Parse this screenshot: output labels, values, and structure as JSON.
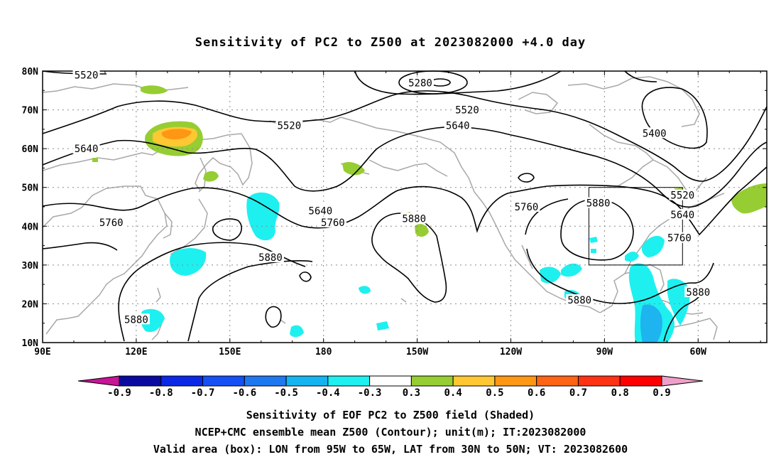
{
  "title": "Sensitivity of PC2 to Z500 at 2023082000 +4.0 day",
  "map": {
    "lat_labels": [
      "80N",
      "70N",
      "60N",
      "50N",
      "40N",
      "30N",
      "20N",
      "10N"
    ],
    "lon_labels": [
      "90E",
      "120E",
      "150E",
      "180",
      "150W",
      "120W",
      "90W",
      "60W"
    ],
    "contour_labels": [
      {
        "text": "5520",
        "lon": 104,
        "lat": 79
      },
      {
        "text": "5280",
        "lon": -149,
        "lat": 77
      },
      {
        "text": "5520",
        "lon": -134,
        "lat": 70
      },
      {
        "text": "5520",
        "lon": 169,
        "lat": 66
      },
      {
        "text": "5640",
        "lon": -137,
        "lat": 66
      },
      {
        "text": "5400",
        "lon": -74,
        "lat": 64
      },
      {
        "text": "5640",
        "lon": 104,
        "lat": 60
      },
      {
        "text": "5520",
        "lon": -65,
        "lat": 48
      },
      {
        "text": "5640",
        "lon": 179,
        "lat": 44
      },
      {
        "text": "5760",
        "lon": -115,
        "lat": 45
      },
      {
        "text": "5880",
        "lon": -92,
        "lat": 46
      },
      {
        "text": "5640",
        "lon": -65,
        "lat": 43
      },
      {
        "text": "5880",
        "lon": -151,
        "lat": 42
      },
      {
        "text": "5760",
        "lon": 112,
        "lat": 41
      },
      {
        "text": "5760",
        "lon": 183,
        "lat": 41
      },
      {
        "text": "5760",
        "lon": -66,
        "lat": 37
      },
      {
        "text": "5880",
        "lon": 163,
        "lat": 32
      },
      {
        "text": "5880",
        "lon": -60,
        "lat": 23
      },
      {
        "text": "5880",
        "lon": -98,
        "lat": 21
      },
      {
        "text": "5880",
        "lon": 120,
        "lat": 16
      }
    ],
    "valid_box": {
      "lon_min": -95,
      "lon_max": -65,
      "lat_min": 30,
      "lat_max": 50
    }
  },
  "colorbar": {
    "levels": [
      "-0.9",
      "-0.8",
      "-0.7",
      "-0.6",
      "-0.5",
      "-0.4",
      "-0.3",
      "0.3",
      "0.4",
      "0.5",
      "0.6",
      "0.7",
      "0.8",
      "0.9"
    ],
    "colors": [
      "#0a0aa0",
      "#0a28e6",
      "#1450f5",
      "#1e78f0",
      "#14b4f0",
      "#1ef0f0",
      "#ffffff",
      "#96cd32",
      "#ffc832",
      "#ff9614",
      "#ff6414",
      "#ff3214",
      "#ff0000"
    ],
    "under_color": "#c81496",
    "over_color": "#f0a0c8"
  },
  "caption": {
    "line1": "Sensitivity of EOF PC2 to Z500 field (Shaded)",
    "line2": "NCEP+CMC ensemble mean Z500 (Contour); unit(m); IT:2023082000",
    "line3": "Valid area (box): LON from 95W to 65W, LAT from 30N to 50N; VT: 2023082600"
  }
}
